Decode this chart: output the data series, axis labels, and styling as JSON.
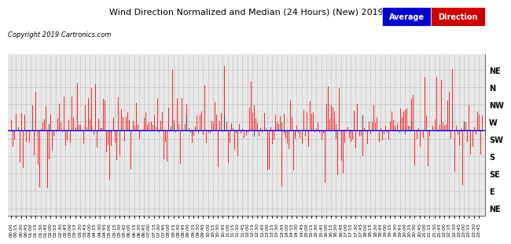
{
  "title": "Wind Direction Normalized and Median (24 Hours) (New) 20190727",
  "copyright_text": "Copyright 2019 Cartronics.com",
  "background_color": "#ffffff",
  "plot_bg_color": "#e8e8e8",
  "grid_color": "#999999",
  "title_fontsize": 8,
  "ytick_labels": [
    "NE",
    "N",
    "NW",
    "W",
    "SW",
    "S",
    "SE",
    "E",
    "NE"
  ],
  "ytick_values": [
    360,
    315,
    270,
    225,
    180,
    135,
    90,
    45,
    0
  ],
  "ylim": [
    -20,
    400
  ],
  "median_line_y": 202,
  "median_line_color": "#0000ff",
  "bar_color": "#ff0000",
  "dark_bar_color": "#444444",
  "legend_blue_label": "Average",
  "legend_red_label": "Direction",
  "legend_blue_bg": "#0000cc",
  "legend_red_bg": "#cc0000",
  "legend_text_color": "#ffffff"
}
